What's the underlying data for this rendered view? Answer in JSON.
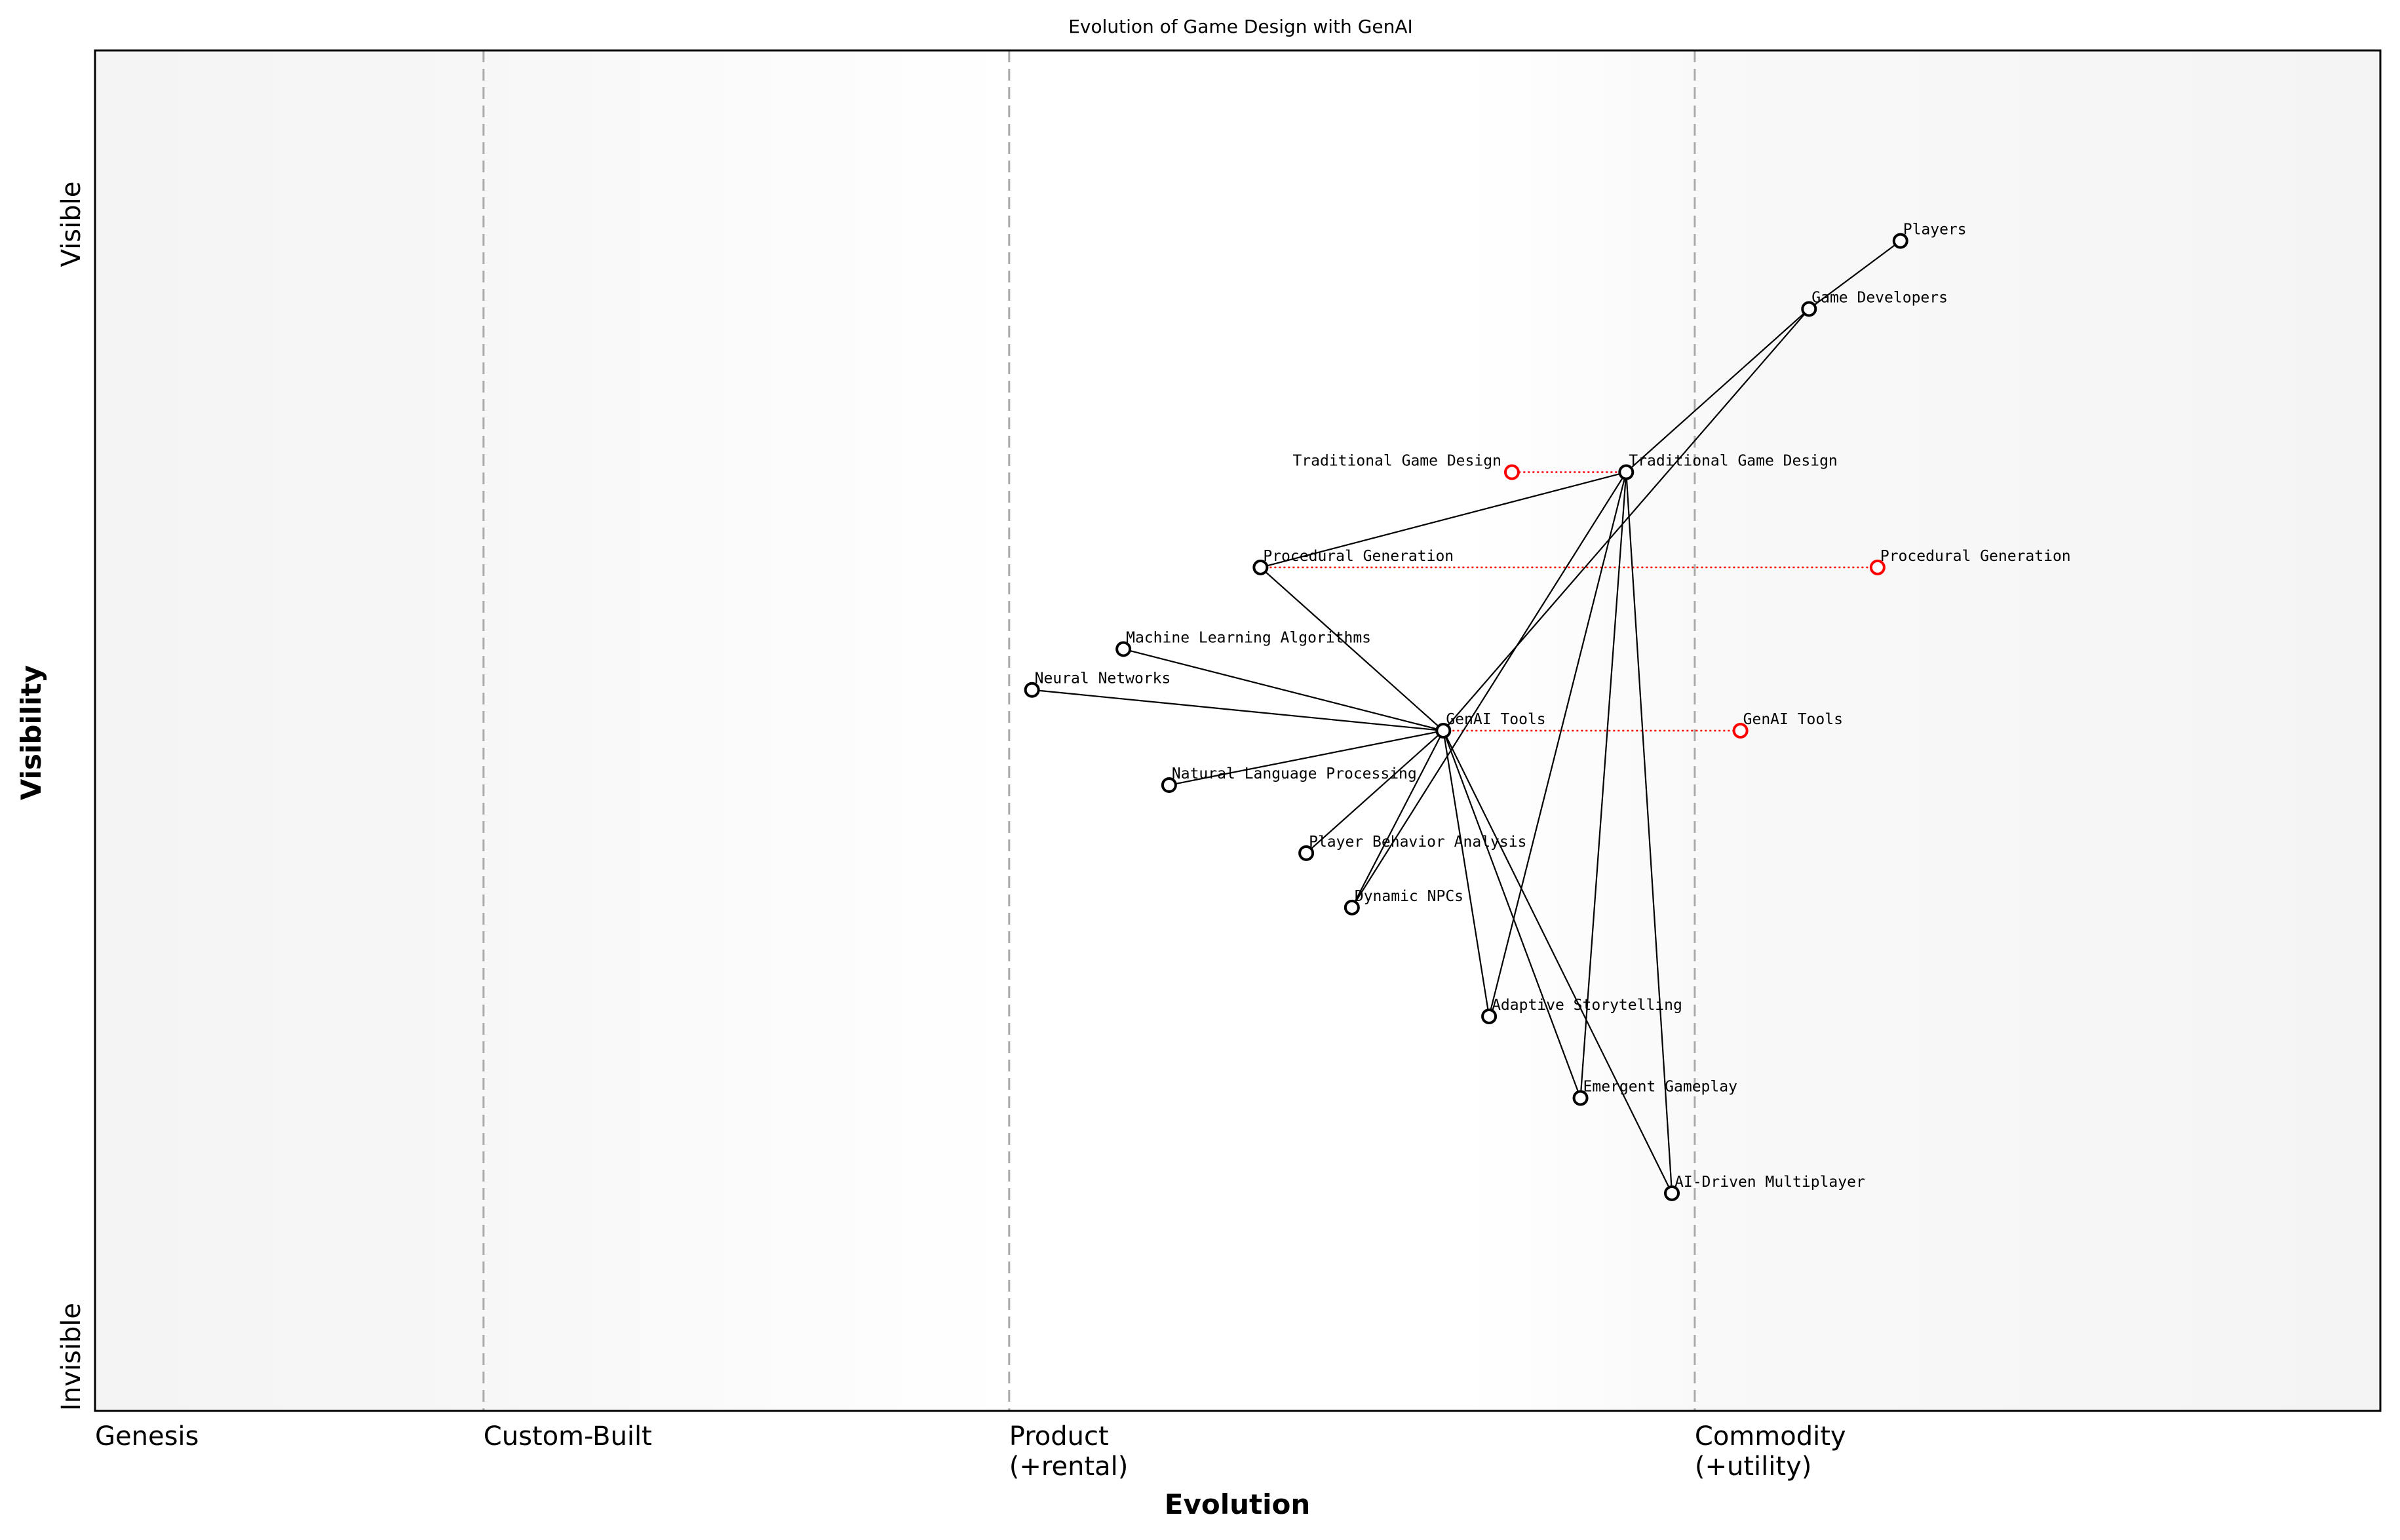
{
  "chart_data": {
    "type": "scatter",
    "subtype": "wardley-map",
    "title": "Evolution of Game Design with GenAI",
    "xlabel": "Evolution",
    "ylabel": "Visibility",
    "xlim": [
      0,
      1
    ],
    "ylim": [
      0,
      1
    ],
    "grid": false,
    "x_stage_ticks": [
      {
        "x": 0,
        "label": [
          "Genesis"
        ]
      },
      {
        "x": 0.17,
        "label": [
          "Custom-Built"
        ]
      },
      {
        "x": 0.4,
        "label": [
          "Product",
          "(+rental)"
        ]
      },
      {
        "x": 0.7,
        "label": [
          "Commodity",
          "(+utility)"
        ]
      }
    ],
    "stage_boundaries": [
      0.17,
      0.4,
      0.7
    ],
    "y_ticks": {
      "top": "Visible",
      "bottom": "Invisible"
    },
    "colors": {
      "node": "#000000",
      "evolution": "#ff0000",
      "stage_line": "#aaaaaa",
      "band": "#f5f5f5"
    },
    "components": [
      {
        "name": "Players",
        "x": 0.79,
        "y": 0.86
      },
      {
        "name": "Game Developers",
        "x": 0.75,
        "y": 0.81
      },
      {
        "name": "Traditional Game Design",
        "x": 0.67,
        "y": 0.69
      },
      {
        "name": "Procedural Generation",
        "x": 0.51,
        "y": 0.62
      },
      {
        "name": "Machine Learning Algorithms",
        "x": 0.45,
        "y": 0.56
      },
      {
        "name": "Neural Networks",
        "x": 0.41,
        "y": 0.53
      },
      {
        "name": "GenAI Tools",
        "x": 0.59,
        "y": 0.5
      },
      {
        "name": "Natural Language Processing",
        "x": 0.47,
        "y": 0.46
      },
      {
        "name": "Player Behavior Analysis",
        "x": 0.53,
        "y": 0.41
      },
      {
        "name": "Dynamic NPCs",
        "x": 0.55,
        "y": 0.37
      },
      {
        "name": "Adaptive Storytelling",
        "x": 0.61,
        "y": 0.29
      },
      {
        "name": "Emergent Gameplay",
        "x": 0.65,
        "y": 0.23
      },
      {
        "name": "AI-Driven Multiplayer",
        "x": 0.69,
        "y": 0.16
      }
    ],
    "links": [
      [
        "Players",
        "Game Developers"
      ],
      [
        "Game Developers",
        "Traditional Game Design"
      ],
      [
        "Game Developers",
        "GenAI Tools"
      ],
      [
        "Traditional Game Design",
        "Procedural Generation"
      ],
      [
        "Traditional Game Design",
        "Dynamic NPCs"
      ],
      [
        "Traditional Game Design",
        "Adaptive Storytelling"
      ],
      [
        "Traditional Game Design",
        "Emergent Gameplay"
      ],
      [
        "Traditional Game Design",
        "AI-Driven Multiplayer"
      ],
      [
        "Procedural Generation",
        "GenAI Tools"
      ],
      [
        "GenAI Tools",
        "Machine Learning Algorithms"
      ],
      [
        "GenAI Tools",
        "Neural Networks"
      ],
      [
        "GenAI Tools",
        "Natural Language Processing"
      ],
      [
        "GenAI Tools",
        "Player Behavior Analysis"
      ],
      [
        "GenAI Tools",
        "Dynamic NPCs"
      ],
      [
        "GenAI Tools",
        "Adaptive Storytelling"
      ],
      [
        "GenAI Tools",
        "Emergent Gameplay"
      ],
      [
        "GenAI Tools",
        "AI-Driven Multiplayer"
      ]
    ],
    "evolutions": [
      {
        "name": "Traditional Game Design",
        "from_x": 0.67,
        "to_x": 0.62,
        "y": 0.69
      },
      {
        "name": "Procedural Generation",
        "from_x": 0.51,
        "to_x": 0.78,
        "y": 0.62
      },
      {
        "name": "GenAI Tools",
        "from_x": 0.59,
        "to_x": 0.72,
        "y": 0.5
      }
    ]
  }
}
